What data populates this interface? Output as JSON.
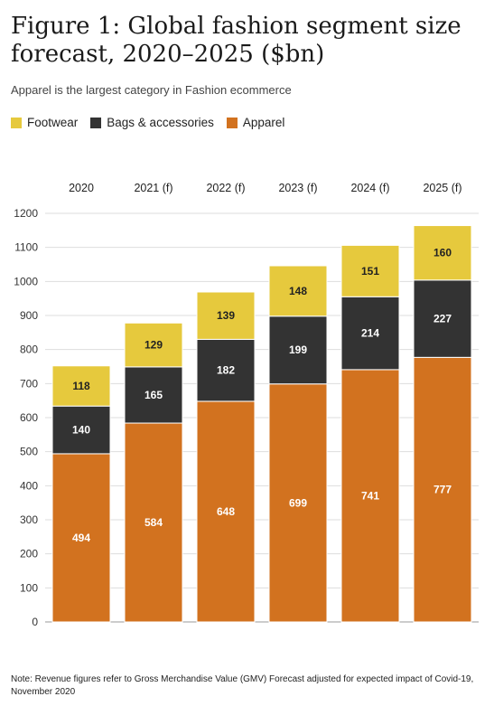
{
  "title": "Figure 1: Global fashion segment size forecast, 2020–2025 ($bn)",
  "subtitle": "Apparel is the largest category in Fashion ecommerce",
  "footnote": "Note: Revenue figures refer to Gross Merchandise Value (GMV) Forecast adjusted for expected impact of Covid-19, November 2020",
  "colors": {
    "footwear": "#e6c93d",
    "bags": "#333333",
    "apparel": "#d2721f",
    "grid": "#dddddd"
  },
  "chart_data": {
    "type": "bar",
    "stacked": true,
    "categories": [
      "2020",
      "2021 (f)",
      "2022 (f)",
      "2023 (f)",
      "2024 (f)",
      "2025 (f)"
    ],
    "series": [
      {
        "name": "Apparel",
        "values": [
          494,
          584,
          648,
          699,
          741,
          777
        ]
      },
      {
        "name": "Bags & accessories",
        "values": [
          140,
          165,
          182,
          199,
          214,
          227
        ]
      },
      {
        "name": "Footwear",
        "values": [
          118,
          129,
          139,
          148,
          151,
          160
        ]
      }
    ],
    "legend_order": [
      "Footwear",
      "Bags & accessories",
      "Apparel"
    ],
    "ylim": [
      0,
      1200
    ],
    "yticks": [
      0,
      100,
      200,
      300,
      400,
      500,
      600,
      700,
      800,
      900,
      1000,
      1100,
      1200
    ],
    "grid": true,
    "legend_position": "top-left",
    "category_labels_position": "top"
  }
}
